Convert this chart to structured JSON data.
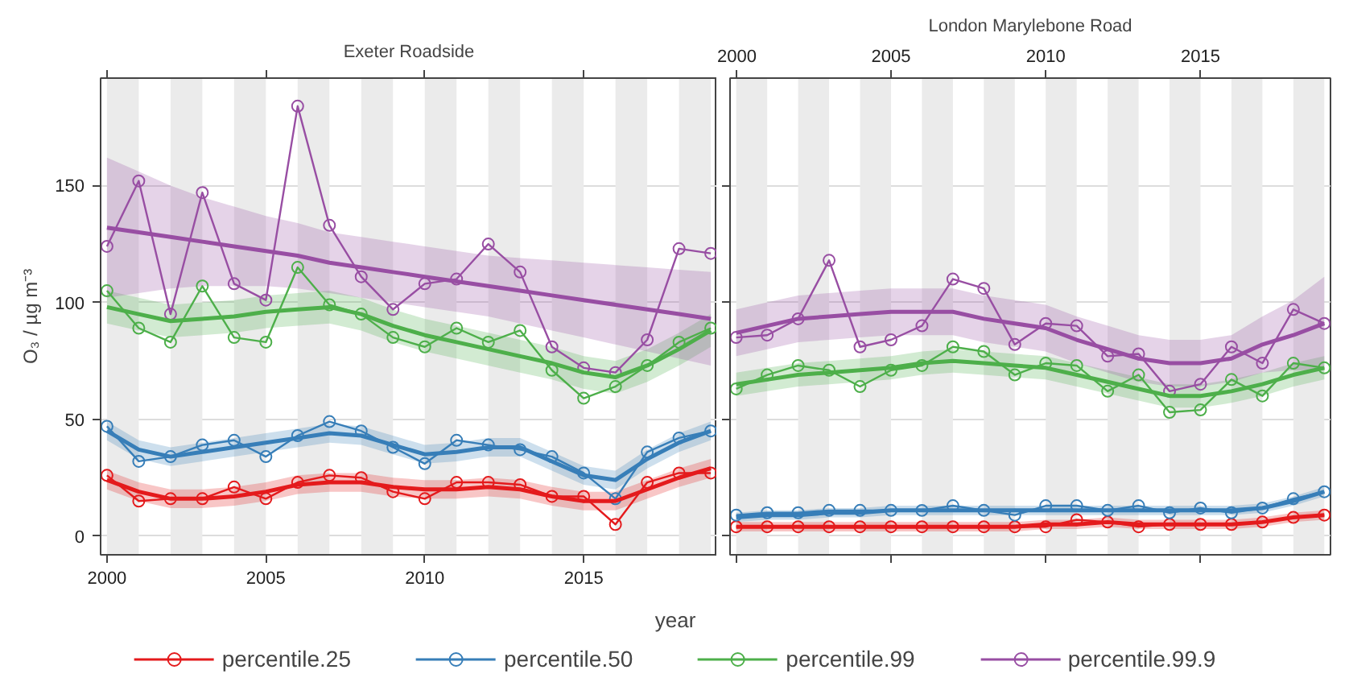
{
  "chart_data": [
    {
      "type": "line",
      "title": "Exeter Roadside",
      "ylabel": "O₃ / µg m⁻³",
      "xlabel": "year",
      "legend": "bottom",
      "grid": "y",
      "x": [
        2000,
        2001,
        2002,
        2003,
        2004,
        2005,
        2006,
        2007,
        2008,
        2009,
        2010,
        2011,
        2012,
        2013,
        2014,
        2015,
        2016,
        2017,
        2018,
        2019
      ],
      "xlim": [
        1999.8,
        2019.2
      ],
      "xticks": [
        2000,
        2005,
        2010,
        2015
      ],
      "ylim": [
        -8,
        196
      ],
      "yticks": [
        0,
        50,
        100,
        150
      ],
      "bands": [
        {
          "axis": "x",
          "from": 2000,
          "to": 2001,
          "color": "#ebebeb"
        },
        {
          "axis": "x",
          "from": 2002,
          "to": 2003,
          "color": "#ebebeb"
        },
        {
          "axis": "x",
          "from": 2004,
          "to": 2005,
          "color": "#ebebeb"
        },
        {
          "axis": "x",
          "from": 2006,
          "to": 2007,
          "color": "#ebebeb"
        },
        {
          "axis": "x",
          "from": 2008,
          "to": 2009,
          "color": "#ebebeb"
        },
        {
          "axis": "x",
          "from": 2010,
          "to": 2011,
          "color": "#ebebeb"
        },
        {
          "axis": "x",
          "from": 2012,
          "to": 2013,
          "color": "#ebebeb"
        },
        {
          "axis": "x",
          "from": 2014,
          "to": 2015,
          "color": "#ebebeb"
        },
        {
          "axis": "x",
          "from": 2016,
          "to": 2017,
          "color": "#ebebeb"
        },
        {
          "axis": "x",
          "from": 2018,
          "to": 2019,
          "color": "#ebebeb"
        }
      ],
      "series": [
        {
          "name": "percentile.25",
          "color": "#e41a1c",
          "marker": "circle",
          "values": [
            26,
            15,
            16,
            16,
            21,
            16,
            23,
            26,
            25,
            19,
            16,
            23,
            23,
            22,
            17,
            17,
            5,
            23,
            27,
            27
          ]
        },
        {
          "name": "percentile.50",
          "color": "#377eb8",
          "marker": "circle",
          "values": [
            47,
            32,
            34,
            39,
            41,
            34,
            43,
            49,
            45,
            38,
            31,
            41,
            39,
            37,
            34,
            27,
            16,
            36,
            42,
            45
          ]
        },
        {
          "name": "percentile.99",
          "color": "#4daf4a",
          "marker": "circle",
          "values": [
            105,
            89,
            83,
            107,
            85,
            83,
            115,
            99,
            95,
            85,
            81,
            89,
            83,
            88,
            71,
            59,
            64,
            73,
            83,
            89
          ]
        },
        {
          "name": "percentile.99.9",
          "color": "#984ea3",
          "marker": "circle",
          "values": [
            124,
            152,
            95,
            147,
            108,
            101,
            184,
            133,
            111,
            97,
            108,
            110,
            125,
            113,
            81,
            72,
            70,
            84,
            123,
            121
          ]
        },
        {
          "color": "#e41a1c",
          "marker": "none",
          "values": [
            24,
            19,
            16,
            16,
            17,
            19,
            22,
            23,
            23,
            21,
            20,
            20,
            21,
            20,
            17,
            15,
            15,
            20,
            25,
            29
          ],
          "lower": [
            20,
            15,
            12,
            12,
            13,
            15,
            18,
            19,
            19,
            17,
            16,
            16,
            17,
            16,
            13,
            11,
            11,
            16,
            21,
            25
          ],
          "upper": [
            28,
            23,
            20,
            20,
            21,
            23,
            26,
            27,
            27,
            25,
            24,
            24,
            25,
            24,
            21,
            19,
            19,
            24,
            29,
            33
          ]
        },
        {
          "color": "#377eb8",
          "marker": "none",
          "values": [
            45,
            37,
            34,
            36,
            38,
            40,
            42,
            44,
            43,
            39,
            35,
            36,
            38,
            38,
            32,
            26,
            24,
            33,
            40,
            45
          ],
          "lower": [
            41,
            33,
            30,
            32,
            34,
            36,
            38,
            40,
            39,
            35,
            31,
            32,
            34,
            34,
            28,
            22,
            20,
            29,
            36,
            41
          ],
          "upper": [
            49,
            41,
            38,
            40,
            42,
            44,
            46,
            48,
            47,
            43,
            39,
            40,
            42,
            42,
            36,
            30,
            28,
            37,
            44,
            49
          ]
        },
        {
          "color": "#4daf4a",
          "marker": "none",
          "values": [
            98,
            95,
            92,
            93,
            94,
            96,
            97,
            98,
            95,
            90,
            86,
            83,
            80,
            77,
            74,
            70,
            68,
            73,
            80,
            88
          ],
          "lower": [
            91,
            88,
            85,
            86,
            87,
            89,
            90,
            91,
            88,
            83,
            79,
            76,
            73,
            70,
            67,
            63,
            61,
            66,
            73,
            81
          ],
          "upper": [
            105,
            102,
            99,
            100,
            101,
            103,
            104,
            105,
            102,
            97,
            93,
            90,
            87,
            84,
            81,
            77,
            75,
            80,
            87,
            95
          ]
        },
        {
          "color": "#984ea3",
          "marker": "none",
          "values": [
            132,
            130,
            128,
            126,
            124,
            122,
            120,
            117,
            115,
            113,
            111,
            109,
            107,
            105,
            103,
            101,
            99,
            97,
            95,
            93
          ],
          "lower": [
            102,
            104,
            106,
            107,
            107,
            107,
            106,
            104,
            102,
            100,
            98,
            96,
            94,
            91,
            88,
            85,
            82,
            79,
            76,
            73
          ],
          "upper": [
            162,
            156,
            150,
            145,
            141,
            137,
            134,
            130,
            128,
            126,
            124,
            122,
            120,
            119,
            118,
            117,
            116,
            115,
            114,
            113
          ]
        }
      ]
    },
    {
      "type": "line",
      "title": "London Marylebone Road",
      "grid": "y",
      "tick_labels": "x",
      "x": [
        2000,
        2001,
        2002,
        2003,
        2004,
        2005,
        2006,
        2007,
        2008,
        2009,
        2010,
        2011,
        2012,
        2013,
        2014,
        2015,
        2016,
        2017,
        2018,
        2019
      ],
      "xlim": [
        1999.8,
        2019.2
      ],
      "xticks": [
        2000,
        2005,
        2010,
        2015
      ],
      "ylim": [
        -8,
        196
      ],
      "yticks": [
        0,
        50,
        100,
        150
      ],
      "bands": [
        {
          "axis": "x",
          "from": 2000,
          "to": 2001,
          "color": "#ebebeb"
        },
        {
          "axis": "x",
          "from": 2002,
          "to": 2003,
          "color": "#ebebeb"
        },
        {
          "axis": "x",
          "from": 2004,
          "to": 2005,
          "color": "#ebebeb"
        },
        {
          "axis": "x",
          "from": 2006,
          "to": 2007,
          "color": "#ebebeb"
        },
        {
          "axis": "x",
          "from": 2008,
          "to": 2009,
          "color": "#ebebeb"
        },
        {
          "axis": "x",
          "from": 2010,
          "to": 2011,
          "color": "#ebebeb"
        },
        {
          "axis": "x",
          "from": 2012,
          "to": 2013,
          "color": "#ebebeb"
        },
        {
          "axis": "x",
          "from": 2014,
          "to": 2015,
          "color": "#ebebeb"
        },
        {
          "axis": "x",
          "from": 2016,
          "to": 2017,
          "color": "#ebebeb"
        },
        {
          "axis": "x",
          "from": 2018,
          "to": 2019,
          "color": "#ebebeb"
        }
      ],
      "series": [
        {
          "name": "percentile.25",
          "color": "#e41a1c",
          "marker": "circle",
          "values": [
            4,
            4,
            4,
            4,
            4,
            4,
            4,
            4,
            4,
            4,
            4,
            7,
            6,
            4,
            5,
            5,
            5,
            6,
            8,
            9
          ]
        },
        {
          "name": "percentile.50",
          "color": "#377eb8",
          "marker": "circle",
          "values": [
            9,
            10,
            10,
            11,
            11,
            11,
            11,
            13,
            11,
            9,
            13,
            13,
            11,
            13,
            10,
            12,
            10,
            12,
            16,
            19
          ]
        },
        {
          "name": "percentile.99",
          "color": "#4daf4a",
          "marker": "circle",
          "values": [
            63,
            69,
            73,
            71,
            64,
            71,
            73,
            81,
            79,
            69,
            74,
            73,
            62,
            69,
            53,
            54,
            67,
            60,
            74,
            72
          ]
        },
        {
          "name": "percentile.99.9",
          "color": "#984ea3",
          "marker": "circle",
          "values": [
            85,
            86,
            93,
            118,
            81,
            84,
            90,
            110,
            106,
            82,
            91,
            90,
            77,
            78,
            62,
            65,
            81,
            74,
            97,
            91
          ]
        },
        {
          "color": "#e41a1c",
          "marker": "none",
          "values": [
            4,
            4,
            4,
            4,
            4,
            4,
            4,
            4,
            4,
            4,
            5,
            5,
            6,
            5,
            5,
            5,
            5,
            6,
            8,
            9
          ],
          "lower": [
            2,
            2,
            2,
            2,
            2,
            2,
            2,
            2,
            2,
            2,
            3,
            3,
            4,
            3,
            3,
            3,
            3,
            4,
            6,
            7
          ],
          "upper": [
            6,
            6,
            6,
            6,
            6,
            6,
            6,
            6,
            6,
            6,
            7,
            7,
            8,
            7,
            7,
            7,
            7,
            8,
            10,
            11
          ]
        },
        {
          "color": "#377eb8",
          "marker": "none",
          "values": [
            8,
            9,
            9,
            10,
            10,
            11,
            11,
            11,
            11,
            11,
            11,
            11,
            11,
            11,
            11,
            11,
            11,
            12,
            15,
            19
          ],
          "lower": [
            6,
            7,
            7,
            8,
            8,
            9,
            9,
            9,
            9,
            9,
            9,
            9,
            9,
            9,
            9,
            9,
            9,
            10,
            13,
            17
          ],
          "upper": [
            10,
            11,
            11,
            12,
            12,
            13,
            13,
            13,
            13,
            13,
            13,
            13,
            13,
            13,
            13,
            13,
            13,
            14,
            17,
            21
          ]
        },
        {
          "color": "#4daf4a",
          "marker": "none",
          "values": [
            65,
            67,
            69,
            70,
            71,
            72,
            74,
            75,
            74,
            73,
            72,
            69,
            66,
            63,
            60,
            60,
            62,
            65,
            69,
            72
          ],
          "lower": [
            60,
            62,
            64,
            65,
            66,
            67,
            69,
            70,
            69,
            68,
            67,
            64,
            61,
            58,
            55,
            55,
            57,
            60,
            64,
            67
          ],
          "upper": [
            70,
            72,
            74,
            75,
            76,
            77,
            79,
            80,
            79,
            78,
            77,
            74,
            71,
            68,
            65,
            65,
            67,
            70,
            74,
            77
          ]
        },
        {
          "color": "#984ea3",
          "marker": "none",
          "values": [
            87,
            90,
            93,
            94,
            95,
            96,
            96,
            96,
            93,
            91,
            89,
            84,
            80,
            76,
            74,
            74,
            76,
            82,
            86,
            91
          ],
          "lower": [
            77,
            80,
            83,
            84,
            85,
            86,
            86,
            86,
            83,
            81,
            79,
            74,
            70,
            66,
            64,
            64,
            66,
            70,
            71,
            71
          ],
          "upper": [
            97,
            100,
            103,
            104,
            105,
            106,
            106,
            106,
            103,
            101,
            99,
            94,
            90,
            86,
            84,
            84,
            86,
            94,
            101,
            111
          ]
        }
      ]
    }
  ]
}
